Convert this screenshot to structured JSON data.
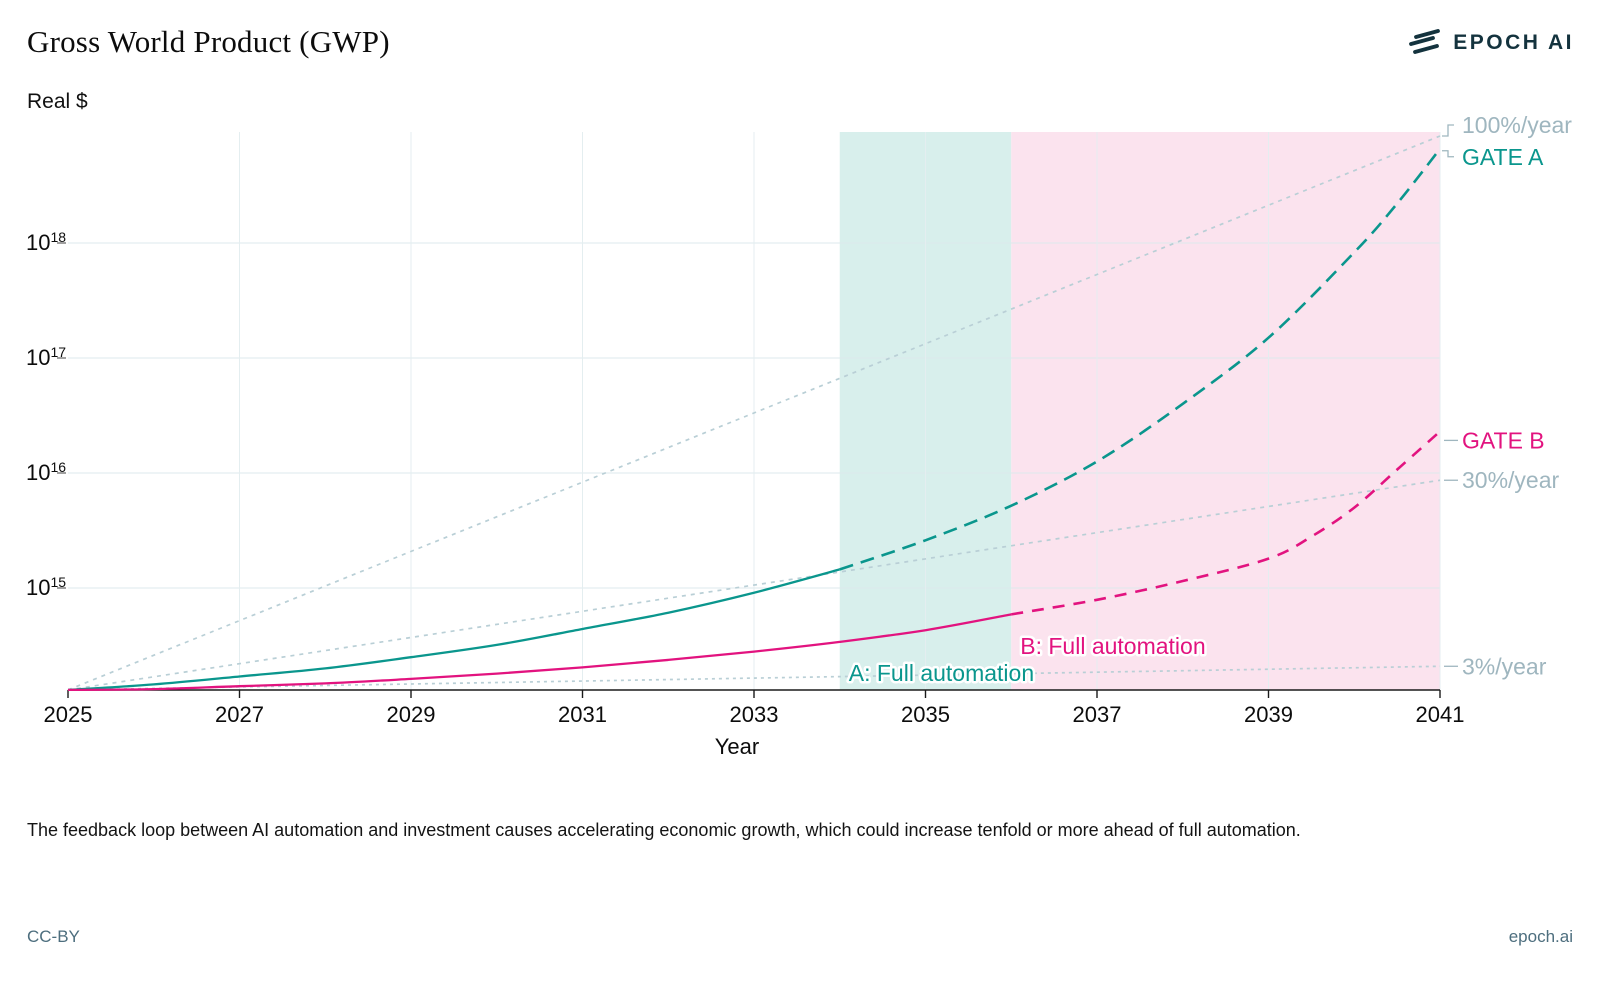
{
  "header": {
    "title": "Gross World Product (GWP)",
    "y_unit_label": "Real $",
    "brand": "EPOCH AI"
  },
  "caption": {
    "text": "The feedback loop between AI automation and investment causes accelerating economic growth, which could increase tenfold or more ahead of full automation."
  },
  "footer": {
    "license": "CC-BY",
    "site": "epoch.ai"
  },
  "chart_data": {
    "type": "line",
    "title": "Gross World Product (GWP)",
    "ylabel": "Real $",
    "xlabel": "Year",
    "y_scale": "log",
    "x_range": [
      2025,
      2041
    ],
    "x_ticks": [
      2025,
      2027,
      2029,
      2031,
      2033,
      2035,
      2037,
      2039,
      2041
    ],
    "y_tick_exponents": [
      15,
      16,
      17,
      18
    ],
    "y_range_log10": [
      14.1,
      18.95
    ],
    "grid": true,
    "baseline_value_2025": 130000000000000.0,
    "bands": [
      {
        "name": "gate-a-window",
        "from": 2034,
        "to": 2036,
        "color": "#d8efec"
      },
      {
        "name": "gate-b-window",
        "from": 2036,
        "to": 2041,
        "color": "#fbe3ee"
      }
    ],
    "reference_lines": [
      {
        "label": "100%/year",
        "rate_pct_per_year": 100,
        "color": "#b9cfd6",
        "dash": "4 5"
      },
      {
        "label": "30%/year",
        "rate_pct_per_year": 30,
        "color": "#b9cfd6",
        "dash": "4 5"
      },
      {
        "label": "3%/year",
        "rate_pct_per_year": 3,
        "color": "#b9cfd6",
        "dash": "3 4"
      }
    ],
    "series": [
      {
        "name": "A: Full automation",
        "gate_label": "GATE A",
        "color": "#0a968d",
        "dash_from": 2034,
        "points": [
          [
            2025,
            130000000000000.0
          ],
          [
            2026,
            145000000000000.0
          ],
          [
            2027,
            170000000000000.0
          ],
          [
            2028,
            200000000000000.0
          ],
          [
            2029,
            250000000000000.0
          ],
          [
            2030,
            320000000000000.0
          ],
          [
            2031,
            440000000000000.0
          ],
          [
            2032,
            610000000000000.0
          ],
          [
            2033,
            910000000000000.0
          ],
          [
            2034,
            1450000000000000.0
          ],
          [
            2035,
            2600000000000000.0
          ],
          [
            2036,
            5200000000000000.0
          ],
          [
            2037,
            1.26e+16
          ],
          [
            2038,
            4e+16
          ],
          [
            2039,
            1.5e+17
          ],
          [
            2040,
            8.3e+17
          ],
          [
            2040.5,
            2.2e+18
          ],
          [
            2041,
            6.6e+18
          ]
        ]
      },
      {
        "name": "B: Full automation",
        "gate_label": "GATE B",
        "color": "#e2137f",
        "dash_from": 2036,
        "points": [
          [
            2025,
            130000000000000.0
          ],
          [
            2026,
            132000000000000.0
          ],
          [
            2027,
            140000000000000.0
          ],
          [
            2028,
            148000000000000.0
          ],
          [
            2029,
            162000000000000.0
          ],
          [
            2030,
            180000000000000.0
          ],
          [
            2031,
            204000000000000.0
          ],
          [
            2032,
            237000000000000.0
          ],
          [
            2033,
            280000000000000.0
          ],
          [
            2034,
            340000000000000.0
          ],
          [
            2035,
            430000000000000.0
          ],
          [
            2036,
            590000000000000.0
          ],
          [
            2037,
            790000000000000.0
          ],
          [
            2038,
            1150000000000000.0
          ],
          [
            2039,
            1800000000000000.0
          ],
          [
            2039.5,
            2800000000000000.0
          ],
          [
            2040,
            5000000000000000.0
          ],
          [
            2040.5,
            1.07e+16
          ],
          [
            2041,
            2.3e+16
          ]
        ]
      }
    ]
  }
}
